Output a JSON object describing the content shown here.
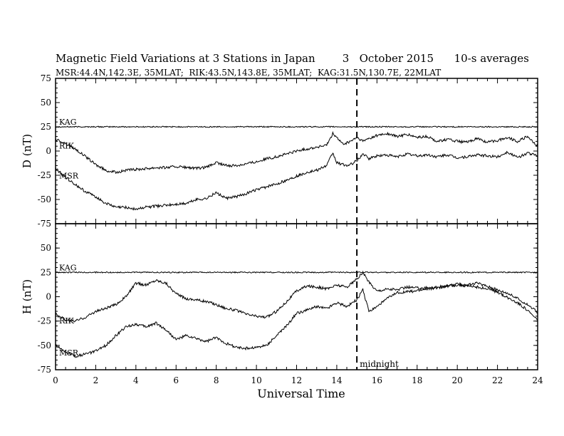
{
  "chart_data": {
    "type": "line",
    "title": "Magnetic Field Variations at 3 Stations in Japan        3   October 2015      10-s averages",
    "subtitle": "MSR:44.4N,142.3E, 35MLAT;  RIK:43.5N,143.8E, 35MLAT;  KAG:31.5N,130.7E, 22MLAT",
    "xlabel": "Universal Time",
    "xlim": [
      0,
      24
    ],
    "x_ticks": [
      "0",
      "2",
      "4",
      "6",
      "8",
      "10",
      "12",
      "14",
      "16",
      "18",
      "20",
      "22",
      "24"
    ],
    "midnight_marker": {
      "x": 15,
      "label": "midnight"
    },
    "grid": false,
    "panels": [
      {
        "ylabel": "D (nT)",
        "ylim": [
          -75,
          75
        ],
        "y_ticks": [
          "75",
          "50",
          "25",
          "0",
          "-25",
          "-50",
          "-75"
        ],
        "series": [
          {
            "name": "KAG",
            "x": [
              0,
              24
            ],
            "y": [
              25,
              25
            ]
          },
          {
            "name": "RIK",
            "x": [
              0,
              0.5,
              1,
              1.5,
              2,
              2.5,
              3,
              3.5,
              4,
              4.5,
              5,
              5.5,
              6,
              6.5,
              7,
              7.5,
              8,
              8.5,
              9,
              9.5,
              10,
              10.5,
              11,
              11.5,
              12,
              12.5,
              13,
              13.5,
              13.8,
              14,
              14.3,
              14.6,
              15,
              15.3,
              15.6,
              16,
              16.5,
              17,
              17.5,
              18,
              18.5,
              19,
              19.5,
              20,
              20.5,
              21,
              21.5,
              22,
              22.5,
              23,
              23.5,
              24
            ],
            "y": [
              12,
              8,
              2,
              -6,
              -14,
              -20,
              -22,
              -20,
              -19,
              -18,
              -17,
              -17,
              -16,
              -17,
              -18,
              -17,
              -12,
              -15,
              -15,
              -13,
              -11,
              -8,
              -6,
              -3,
              0,
              2,
              4,
              6,
              18,
              14,
              7,
              9,
              14,
              10,
              13,
              16,
              18,
              15,
              17,
              14,
              15,
              10,
              12,
              10,
              9,
              13,
              9,
              11,
              14,
              10,
              15,
              5
            ]
          },
          {
            "name": "MSR",
            "x": [
              0,
              0.5,
              1,
              1.5,
              2,
              2.5,
              3,
              3.5,
              4,
              4.5,
              5,
              5.5,
              6,
              6.5,
              7,
              7.5,
              8,
              8.5,
              9,
              9.5,
              10,
              10.5,
              11,
              11.5,
              12,
              12.5,
              13,
              13.5,
              13.8,
              14,
              14.3,
              14.6,
              15,
              15.3,
              15.6,
              16,
              16.5,
              17,
              17.5,
              18,
              18.5,
              19,
              19.5,
              20,
              20.5,
              21,
              21.5,
              22,
              22.5,
              23,
              23.5,
              24
            ],
            "y": [
              -18,
              -27,
              -35,
              -42,
              -47,
              -54,
              -58,
              -58,
              -60,
              -58,
              -57,
              -56,
              -55,
              -54,
              -50,
              -49,
              -43,
              -49,
              -47,
              -44,
              -40,
              -37,
              -34,
              -30,
              -26,
              -22,
              -20,
              -15,
              -2,
              -12,
              -14,
              -15,
              -10,
              -3,
              -8,
              -5,
              -4,
              -6,
              -3,
              -5,
              -4,
              -6,
              -4,
              -7,
              -6,
              -4,
              -5,
              -6,
              -1,
              -7,
              -2,
              -5
            ]
          }
        ]
      },
      {
        "ylabel": "H (nT)",
        "ylim": [
          -75,
          75
        ],
        "y_ticks": [
          "75",
          "50",
          "25",
          "0",
          "-25",
          "-50",
          "-75"
        ],
        "series": [
          {
            "name": "KAG",
            "x": [
              0,
              24
            ],
            "y": [
              25,
              25
            ]
          },
          {
            "name": "RIK",
            "x": [
              0,
              0.5,
              1,
              1.5,
              2,
              2.5,
              3,
              3.5,
              4,
              4.5,
              5,
              5.5,
              6,
              6.5,
              7,
              7.5,
              8,
              8.5,
              9,
              9.5,
              10,
              10.5,
              11,
              11.5,
              12,
              12.5,
              13,
              13.5,
              14,
              14.5,
              15,
              15.3,
              15.6,
              16,
              16.5,
              17,
              17.5,
              18,
              18.5,
              19,
              19.5,
              20,
              20.5,
              21,
              21.5,
              22,
              22.5,
              23,
              23.5,
              24
            ],
            "y": [
              -18,
              -24,
              -25,
              -21,
              -15,
              -12,
              -8,
              0,
              14,
              12,
              17,
              14,
              3,
              -2,
              -3,
              -5,
              -8,
              -12,
              -14,
              -18,
              -20,
              -21,
              -15,
              -5,
              6,
              11,
              10,
              8,
              12,
              10,
              18,
              25,
              15,
              6,
              8,
              7,
              10,
              9,
              9,
              10,
              11,
              13,
              12,
              14,
              11,
              7,
              4,
              -2,
              -8,
              -16
            ]
          },
          {
            "name": "MSR",
            "x": [
              0,
              0.5,
              1,
              1.5,
              2,
              2.5,
              3,
              3.5,
              4,
              4.5,
              5,
              5.5,
              6,
              6.5,
              7,
              7.5,
              8,
              8.5,
              9,
              9.5,
              10,
              10.5,
              11,
              11.5,
              12,
              12.5,
              13,
              13.5,
              14,
              14.5,
              15,
              15.3,
              15.6,
              16,
              16.5,
              17,
              17.5,
              18,
              18.5,
              19,
              19.5,
              20,
              20.5,
              21,
              21.5,
              22,
              22.5,
              23,
              23.5,
              24
            ],
            "y": [
              -50,
              -57,
              -61,
              -59,
              -56,
              -50,
              -40,
              -31,
              -28,
              -31,
              -27,
              -34,
              -44,
              -40,
              -43,
              -46,
              -42,
              -48,
              -52,
              -53,
              -52,
              -50,
              -40,
              -30,
              -17,
              -14,
              -10,
              -12,
              -6,
              -10,
              -3,
              7,
              -15,
              -10,
              -2,
              4,
              5,
              6,
              8,
              9,
              11,
              12,
              11,
              10,
              8,
              5,
              -1,
              -6,
              -14,
              -24
            ]
          }
        ]
      }
    ],
    "labels": [
      "KAG",
      "RIK",
      "MSR",
      "KAG",
      "RIK",
      "MSR"
    ]
  }
}
